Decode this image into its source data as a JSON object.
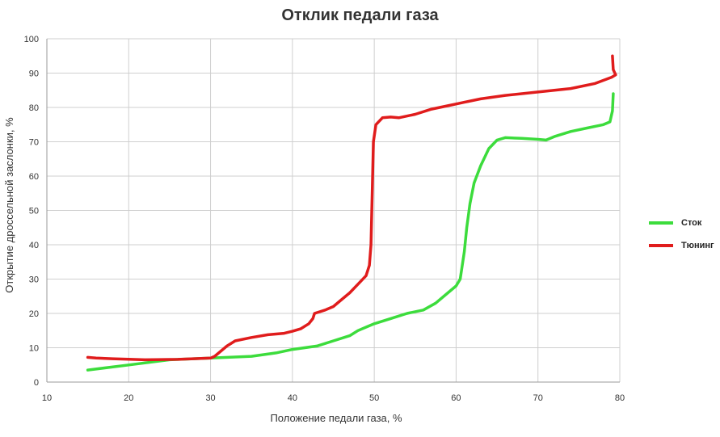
{
  "chart_data": {
    "type": "line",
    "title": "Отклик педали газа",
    "xlabel": "Положение педали газа, %",
    "ylabel": "Открытие дроссельной заслонки, %",
    "xlim": [
      10,
      80
    ],
    "ylim": [
      0,
      100
    ],
    "xticks": [
      10,
      20,
      30,
      40,
      50,
      60,
      70,
      80
    ],
    "yticks": [
      0,
      10,
      20,
      30,
      40,
      50,
      60,
      70,
      80,
      90,
      100
    ],
    "grid": true,
    "legend_position": "right",
    "series": [
      {
        "name": "Сток",
        "color": "#3cdc3c",
        "points": [
          [
            15,
            3.5
          ],
          [
            20,
            5
          ],
          [
            25,
            6.5
          ],
          [
            30,
            7
          ],
          [
            35,
            7.5
          ],
          [
            38,
            8.5
          ],
          [
            40,
            9.5
          ],
          [
            43,
            10.5
          ],
          [
            45,
            12
          ],
          [
            47,
            13.5
          ],
          [
            48,
            15
          ],
          [
            49,
            16
          ],
          [
            50,
            17
          ],
          [
            52,
            18.5
          ],
          [
            54,
            20
          ],
          [
            56,
            21
          ],
          [
            57.5,
            23
          ],
          [
            59,
            26
          ],
          [
            60,
            28
          ],
          [
            60.5,
            30
          ],
          [
            61,
            38
          ],
          [
            61.3,
            45
          ],
          [
            61.7,
            52
          ],
          [
            62.2,
            58
          ],
          [
            63,
            63
          ],
          [
            64,
            68
          ],
          [
            65,
            70.5
          ],
          [
            66,
            71.2
          ],
          [
            68,
            71
          ],
          [
            70,
            70.7
          ],
          [
            71,
            70.5
          ],
          [
            72,
            71.5
          ],
          [
            74,
            73
          ],
          [
            76,
            74
          ],
          [
            78,
            75
          ],
          [
            78.8,
            75.8
          ],
          [
            79.1,
            79
          ],
          [
            79.2,
            84
          ]
        ]
      },
      {
        "name": "Тюнинг",
        "color": "#e01c1c",
        "points": [
          [
            15,
            7.2
          ],
          [
            16,
            7
          ],
          [
            18,
            6.8
          ],
          [
            22,
            6.5
          ],
          [
            26,
            6.6
          ],
          [
            30,
            7
          ],
          [
            30.5,
            7.5
          ],
          [
            31,
            8.5
          ],
          [
            32,
            10.5
          ],
          [
            33,
            12
          ],
          [
            35,
            13
          ],
          [
            37,
            13.8
          ],
          [
            39,
            14.2
          ],
          [
            40,
            14.8
          ],
          [
            41,
            15.5
          ],
          [
            42,
            17
          ],
          [
            42.5,
            18.5
          ],
          [
            42.7,
            20
          ],
          [
            44,
            21
          ],
          [
            45,
            22
          ],
          [
            46,
            24
          ],
          [
            47,
            26
          ],
          [
            48,
            28.5
          ],
          [
            49,
            31
          ],
          [
            49.4,
            34
          ],
          [
            49.6,
            40
          ],
          [
            49.7,
            50
          ],
          [
            49.8,
            60
          ],
          [
            49.9,
            70
          ],
          [
            50.2,
            75
          ],
          [
            51,
            77
          ],
          [
            52,
            77.2
          ],
          [
            53,
            77
          ],
          [
            55,
            78
          ],
          [
            57,
            79.5
          ],
          [
            59,
            80.5
          ],
          [
            61,
            81.5
          ],
          [
            63,
            82.5
          ],
          [
            66,
            83.5
          ],
          [
            70,
            84.5
          ],
          [
            74,
            85.5
          ],
          [
            77,
            87
          ],
          [
            79,
            88.8
          ],
          [
            79.5,
            89.5
          ],
          [
            79.2,
            91
          ],
          [
            79.1,
            95
          ]
        ]
      }
    ]
  }
}
